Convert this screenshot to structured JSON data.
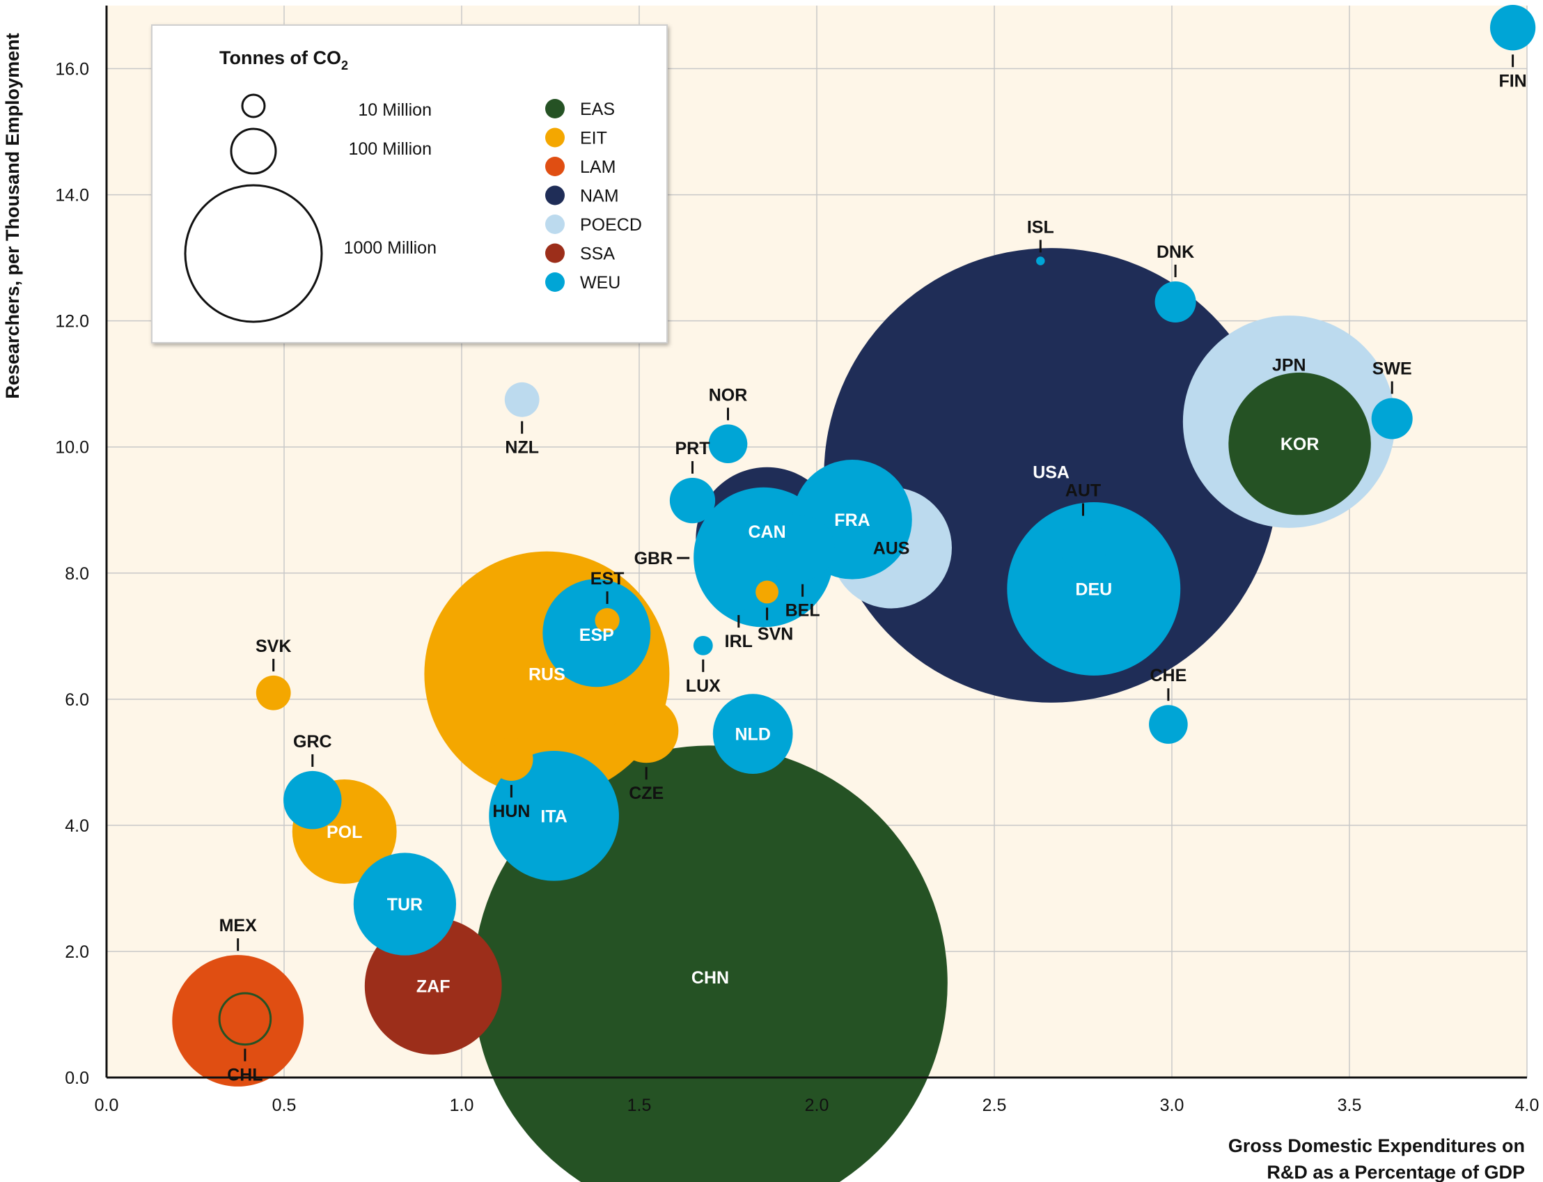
{
  "chart_data": {
    "type": "scatter",
    "xlabel_lines": [
      "Gross Domestic Expenditures on",
      "R&D as a Percentage of GDP"
    ],
    "ylabel": "Researchers, per Thousand Employment",
    "xlim": [
      0.0,
      4.0
    ],
    "ylim": [
      0.0,
      17.0
    ],
    "x_ticks": [
      "0.0",
      "0.5",
      "1.0",
      "1.5",
      "2.0",
      "2.5",
      "3.0",
      "3.5",
      "4.0"
    ],
    "y_ticks": [
      "0.0",
      "2.0",
      "4.0",
      "6.0",
      "8.0",
      "10.0",
      "12.0",
      "14.0",
      "16.0"
    ],
    "grid": true,
    "size_legend": {
      "title_main": "Tonnes of CO",
      "title_sub": "2",
      "entries": [
        {
          "label": "10 Million",
          "value": 10
        },
        {
          "label": "100 Million",
          "value": 100
        },
        {
          "label": "1000 Million",
          "value": 1000
        }
      ]
    },
    "regions": [
      {
        "name": "EAS",
        "color": "#255224"
      },
      {
        "name": "EIT",
        "color": "#f4a700"
      },
      {
        "name": "LAM",
        "color": "#e04e12"
      },
      {
        "name": "NAM",
        "color": "#1f2d57"
      },
      {
        "name": "POECD",
        "color": "#bcdaee"
      },
      {
        "name": "SSA",
        "color": "#9c2e1a"
      },
      {
        "name": "WEU",
        "color": "#00a5d6"
      }
    ],
    "points": [
      {
        "code": "CHN",
        "region": "EAS",
        "x": 1.7,
        "y": 1.5,
        "co2": 6000
      },
      {
        "code": "USA",
        "region": "NAM",
        "x": 2.66,
        "y": 9.55,
        "co2": 5500
      },
      {
        "code": "RUS",
        "region": "EIT",
        "x": 1.24,
        "y": 6.4,
        "co2": 1600
      },
      {
        "code": "JPN",
        "region": "POECD",
        "x": 3.33,
        "y": 10.4,
        "co2": 1200
      },
      {
        "code": "DEU",
        "region": "WEU",
        "x": 2.78,
        "y": 7.75,
        "co2": 800
      },
      {
        "code": "KOR",
        "region": "EAS",
        "x": 3.36,
        "y": 10.05,
        "co2": 540
      },
      {
        "code": "CAN",
        "region": "NAM",
        "x": 1.86,
        "y": 8.55,
        "co2": 540
      },
      {
        "code": "GBR",
        "region": "WEU",
        "x": 1.85,
        "y": 8.25,
        "co2": 520
      },
      {
        "code": "FRA",
        "region": "WEU",
        "x": 2.1,
        "y": 8.85,
        "co2": 380
      },
      {
        "code": "AUS",
        "region": "POECD",
        "x": 2.21,
        "y": 8.4,
        "co2": 390
      },
      {
        "code": "ITA",
        "region": "WEU",
        "x": 1.26,
        "y": 4.15,
        "co2": 450
      },
      {
        "code": "ESP",
        "region": "WEU",
        "x": 1.38,
        "y": 7.05,
        "co2": 310
      },
      {
        "code": "ZAF",
        "region": "SSA",
        "x": 0.92,
        "y": 1.45,
        "co2": 500
      },
      {
        "code": "MEX",
        "region": "LAM",
        "x": 0.37,
        "y": 0.9,
        "co2": 460
      },
      {
        "code": "POL",
        "region": "EIT",
        "x": 0.67,
        "y": 3.9,
        "co2": 290
      },
      {
        "code": "TUR",
        "region": "WEU",
        "x": 0.84,
        "y": 2.75,
        "co2": 280
      },
      {
        "code": "NLD",
        "region": "WEU",
        "x": 1.82,
        "y": 5.45,
        "co2": 170
      },
      {
        "code": "CZE",
        "region": "EIT",
        "x": 1.52,
        "y": 5.5,
        "co2": 110
      },
      {
        "code": "BEL",
        "region": "WEU",
        "x": 1.96,
        "y": 8.4,
        "co2": 110
      },
      {
        "code": "GRC",
        "region": "WEU",
        "x": 0.58,
        "y": 4.4,
        "co2": 90
      },
      {
        "code": "AUT",
        "region": "WEU",
        "x": 2.75,
        "y": 8.45,
        "co2": 65
      },
      {
        "code": "CHL",
        "region": "LAM",
        "x": 0.39,
        "y": 0.93,
        "co2": 70
      },
      {
        "code": "HUN",
        "region": "EIT",
        "x": 1.14,
        "y": 5.05,
        "co2": 50
      },
      {
        "code": "FIN",
        "region": "WEU",
        "x": 3.96,
        "y": 16.65,
        "co2": 55
      },
      {
        "code": "SWE",
        "region": "WEU",
        "x": 3.62,
        "y": 10.45,
        "co2": 45
      },
      {
        "code": "DNK",
        "region": "WEU",
        "x": 3.01,
        "y": 12.3,
        "co2": 45
      },
      {
        "code": "NOR",
        "region": "WEU",
        "x": 1.75,
        "y": 10.05,
        "co2": 40
      },
      {
        "code": "PRT",
        "region": "WEU",
        "x": 1.65,
        "y": 9.15,
        "co2": 55
      },
      {
        "code": "NZL",
        "region": "POECD",
        "x": 1.17,
        "y": 10.75,
        "co2": 32
      },
      {
        "code": "CHE",
        "region": "WEU",
        "x": 2.99,
        "y": 5.6,
        "co2": 40
      },
      {
        "code": "IRL",
        "region": "WEU",
        "x": 1.78,
        "y": 7.7,
        "co2": 38
      },
      {
        "code": "SVK",
        "region": "EIT",
        "x": 0.47,
        "y": 6.1,
        "co2": 32
      },
      {
        "code": "SVN",
        "region": "EIT",
        "x": 1.86,
        "y": 7.7,
        "co2": 14
      },
      {
        "code": "EST",
        "region": "EIT",
        "x": 1.41,
        "y": 7.25,
        "co2": 16
      },
      {
        "code": "LUX",
        "region": "WEU",
        "x": 1.68,
        "y": 6.85,
        "co2": 10
      },
      {
        "code": "ISL",
        "region": "WEU",
        "x": 2.63,
        "y": 12.95,
        "co2": 2
      }
    ]
  }
}
